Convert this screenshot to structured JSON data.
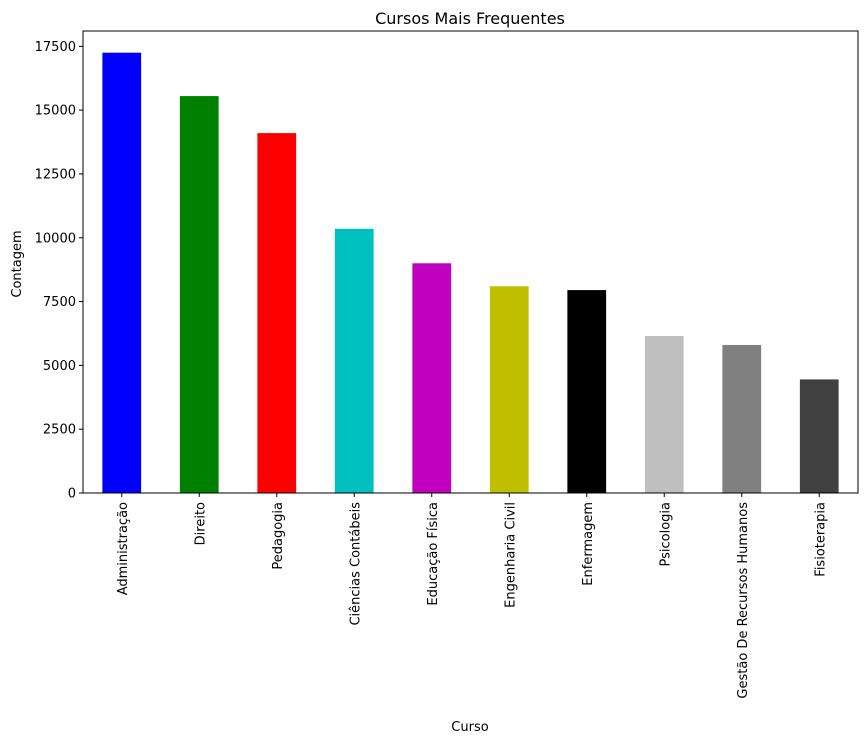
{
  "chart_data": {
    "type": "bar",
    "title": "Cursos Mais Frequentes",
    "xlabel": "Curso",
    "ylabel": "Contagem",
    "categories": [
      "Administração",
      "Direito",
      "Pedagogia",
      "Ciências Contábeis",
      "Educação Física",
      "Engenharia Civil",
      "Enfermagem",
      "Psicologia",
      "Gestão De Recursos Humanos",
      "Fisioterapia"
    ],
    "values": [
      17250,
      15550,
      14100,
      10350,
      9000,
      8100,
      7950,
      6150,
      5800,
      4450
    ],
    "colors": [
      "#0000ff",
      "#008000",
      "#ff0000",
      "#00bfbf",
      "#bf00bf",
      "#bfbf00",
      "#000000",
      "#bfbfbf",
      "#808080",
      "#404040"
    ],
    "ylim": [
      0,
      18100
    ],
    "yticks": [
      0,
      2500,
      5000,
      7500,
      10000,
      12500,
      15000,
      17500
    ],
    "ytick_labels": [
      "0",
      "2500",
      "5000",
      "7500",
      "10000",
      "12500",
      "15000",
      "17500"
    ],
    "grid": false,
    "legend": false
  }
}
